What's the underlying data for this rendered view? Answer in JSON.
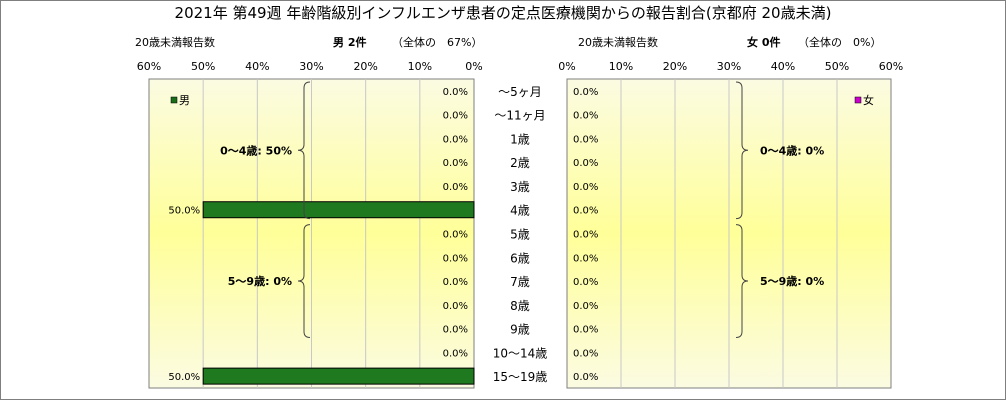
{
  "title": "2021年 第49週 年齢階級別インフルエンザ患者の定点医療機関からの報告割合(京都府 20歳未満)",
  "colors": {
    "male_bar": "#1f7a1f",
    "male_legend": "#1a6e1a",
    "female_legend": "#cc00cc",
    "gradient_edge": "#fbfbe2",
    "gradient_center": "#ffff99",
    "grid": "#c8c8c8",
    "axis": "#7f7f7f"
  },
  "chart_data": [
    {
      "type": "bar",
      "orientation": "horizontal",
      "direction": "right-to-left",
      "panel": "left",
      "header_left": "20歳未満報告数",
      "header_right": "男 2件",
      "header_note": "（全体の　67%）",
      "legend": "男",
      "legend_position": "top-left",
      "xlim": [
        0,
        60
      ],
      "ticks": [
        "60%",
        "50%",
        "40%",
        "30%",
        "20%",
        "10%",
        "0%"
      ],
      "grid": true,
      "categories": [
        "～5ヶ月",
        "～11ヶ月",
        "1歳",
        "2歳",
        "3歳",
        "4歳",
        "5歳",
        "6歳",
        "7歳",
        "8歳",
        "9歳",
        "10～14歳",
        "15～19歳"
      ],
      "values": [
        0.0,
        0.0,
        0.0,
        0.0,
        0.0,
        50.0,
        0.0,
        0.0,
        0.0,
        0.0,
        0.0,
        0.0,
        50.0
      ],
      "value_labels": [
        "0.0%",
        "0.0%",
        "0.0%",
        "0.0%",
        "0.0%",
        "50.0%",
        "0.0%",
        "0.0%",
        "0.0%",
        "0.0%",
        "0.0%",
        "0.0%",
        "50.0%"
      ],
      "groups": [
        {
          "label": "0～4歳: 50%",
          "from": 0,
          "to": 5
        },
        {
          "label": "5～9歳: 0%",
          "from": 6,
          "to": 10
        }
      ]
    },
    {
      "type": "bar",
      "orientation": "horizontal",
      "direction": "left-to-right",
      "panel": "right",
      "header_left": "20歳未満報告数",
      "header_right": "女 0件",
      "header_note": "（全体の　0%）",
      "legend": "女",
      "legend_position": "top-right",
      "xlim": [
        0,
        60
      ],
      "ticks": [
        "0%",
        "10%",
        "20%",
        "30%",
        "40%",
        "50%",
        "60%"
      ],
      "grid": true,
      "categories": [
        "～5ヶ月",
        "～11ヶ月",
        "1歳",
        "2歳",
        "3歳",
        "4歳",
        "5歳",
        "6歳",
        "7歳",
        "8歳",
        "9歳",
        "10～14歳",
        "15～19歳"
      ],
      "values": [
        0.0,
        0.0,
        0.0,
        0.0,
        0.0,
        0.0,
        0.0,
        0.0,
        0.0,
        0.0,
        0.0,
        0.0,
        0.0
      ],
      "value_labels": [
        "0.0%",
        "0.0%",
        "0.0%",
        "0.0%",
        "0.0%",
        "0.0%",
        "0.0%",
        "0.0%",
        "0.0%",
        "0.0%",
        "0.0%",
        "0.0%",
        "0.0%"
      ],
      "groups": [
        {
          "label": "0～4歳: 0%",
          "from": 0,
          "to": 5
        },
        {
          "label": "5～9歳: 0%",
          "from": 6,
          "to": 10
        }
      ]
    }
  ]
}
